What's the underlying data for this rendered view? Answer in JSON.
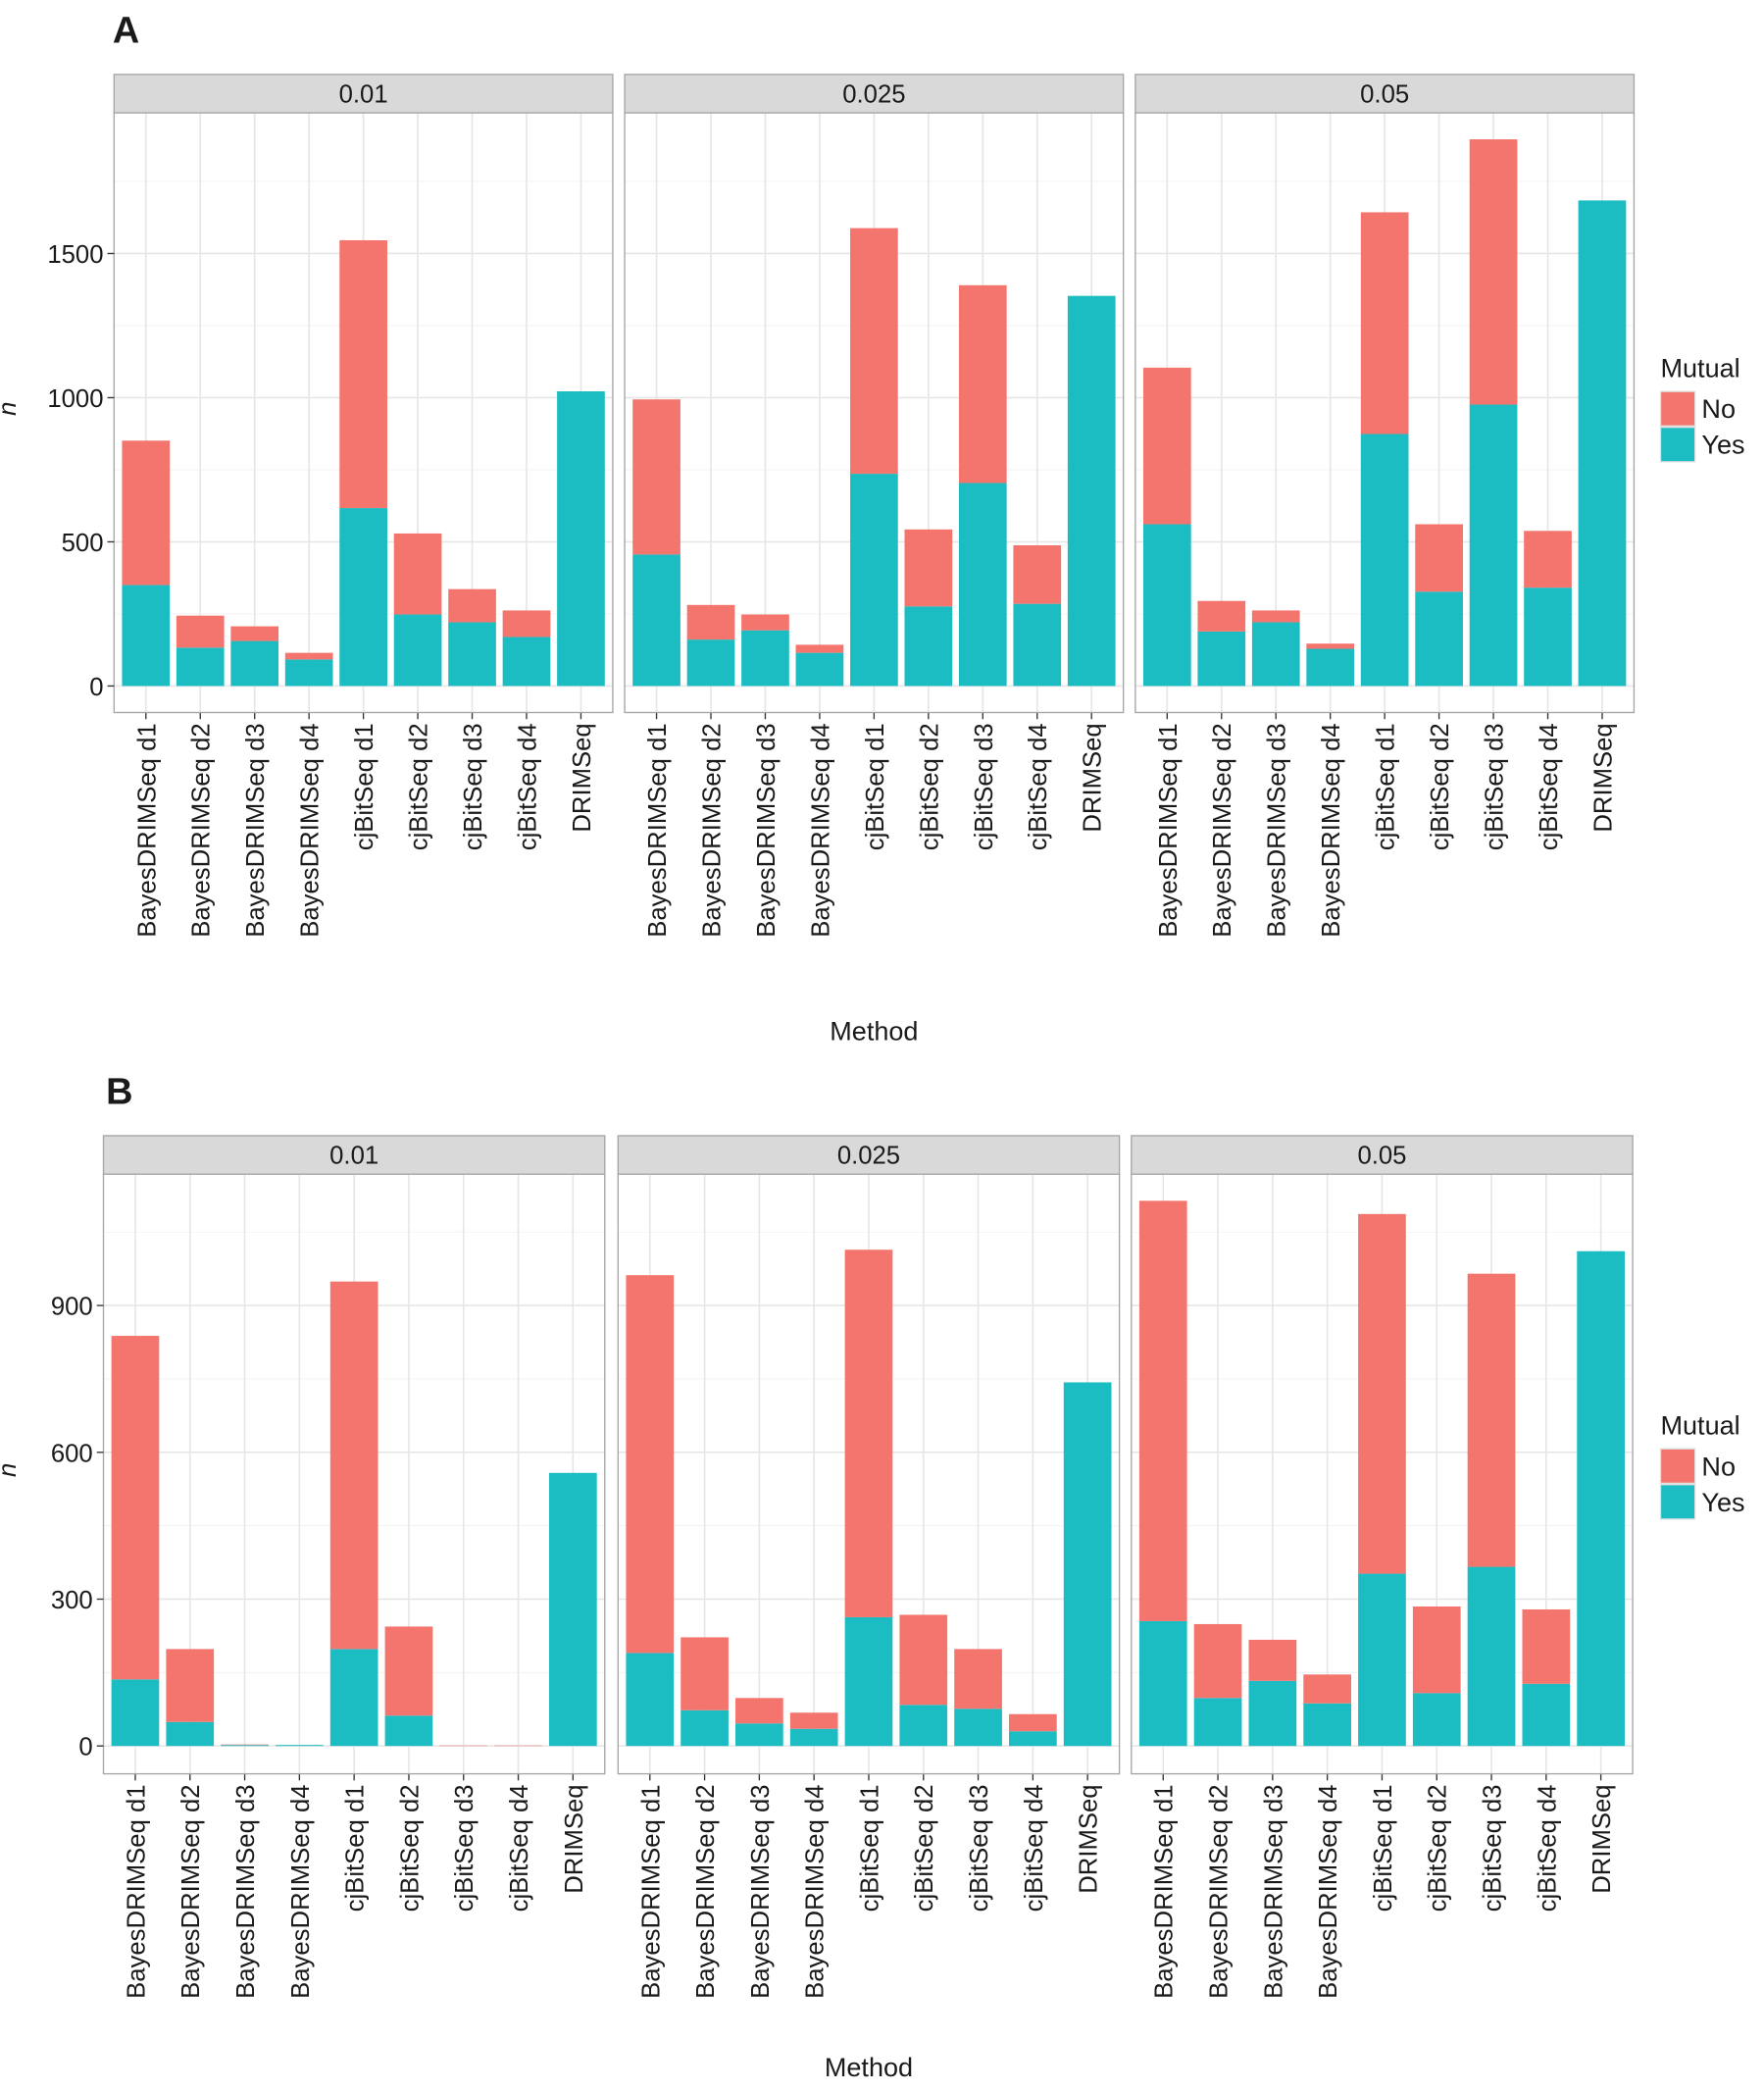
{
  "chart_data": [
    {
      "type": "bar",
      "stacked": true,
      "panel_label": "A",
      "facets": [
        "0.01",
        "0.025",
        "0.05"
      ],
      "categories": [
        "BayesDRIMSeq d1",
        "BayesDRIMSeq d2",
        "BayesDRIMSeq d3",
        "BayesDRIMSeq d4",
        "cjBitSeq d1",
        "cjBitSeq d2",
        "cjBitSeq d3",
        "cjBitSeq d4",
        "DRIMSeq"
      ],
      "xlabel": "Method",
      "ylabel": "n",
      "ylim": [
        0,
        1980
      ],
      "yticks": [
        0,
        500,
        1000,
        1500
      ],
      "grid": true,
      "legend": {
        "title": "Mutual",
        "position": "right",
        "entries": [
          "No",
          "Yes"
        ]
      },
      "colors": {
        "No": "#F4756D",
        "Yes": "#1BBDC3"
      },
      "series": [
        {
          "name": "Yes",
          "values": [
            [
              350,
              133,
              156,
              92,
              617,
              248,
              221,
              170,
              1022
            ],
            [
              456,
              161,
              193,
              115,
              736,
              276,
              704,
              285,
              1353
            ],
            [
              561,
              189,
              221,
              129,
              874,
              327,
              976,
              341,
              1684
            ]
          ]
        },
        {
          "name": "No",
          "values": [
            [
              501,
              111,
              51,
              23,
              929,
              281,
              115,
              92,
              0
            ],
            [
              538,
              120,
              55,
              28,
              852,
              267,
              686,
              203,
              0
            ],
            [
              543,
              106,
              41,
              18,
              769,
              234,
              920,
              197,
              0
            ]
          ]
        }
      ]
    },
    {
      "type": "bar",
      "stacked": true,
      "panel_label": "B",
      "facets": [
        "0.01",
        "0.025",
        "0.05"
      ],
      "categories": [
        "BayesDRIMSeq d1",
        "BayesDRIMSeq d2",
        "BayesDRIMSeq d3",
        "BayesDRIMSeq d4",
        "cjBitSeq d1",
        "cjBitSeq d2",
        "cjBitSeq d3",
        "cjBitSeq d4",
        "DRIMSeq"
      ],
      "xlabel": "Method",
      "ylabel": "n",
      "ylim": [
        0,
        1170
      ],
      "yticks": [
        0,
        300,
        600,
        900
      ],
      "grid": true,
      "legend": {
        "title": "Mutual",
        "position": "right",
        "entries": [
          "No",
          "Yes"
        ]
      },
      "colors": {
        "No": "#F4756D",
        "Yes": "#1BBDC3"
      },
      "series": [
        {
          "name": "Yes",
          "values": [
            [
              136,
              49,
              2,
              2,
              198,
              62,
              0,
              0,
              558
            ],
            [
              190,
              73,
              46,
              35,
              263,
              84,
              76,
              30,
              743
            ],
            [
              255,
              98,
              133,
              87,
              352,
              108,
              366,
              127,
              1011
            ]
          ]
        },
        {
          "name": "No",
          "values": [
            [
              702,
              149,
              1,
              0,
              751,
              182,
              1,
              1,
              0
            ],
            [
              772,
              149,
              52,
              33,
              751,
              184,
              122,
              35,
              0
            ],
            [
              859,
              151,
              84,
              59,
              735,
              177,
              599,
              152,
              0
            ]
          ]
        }
      ]
    }
  ]
}
